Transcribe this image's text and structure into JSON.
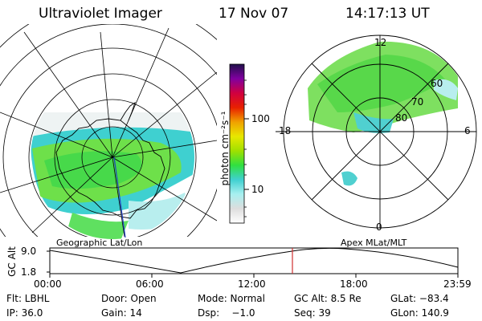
{
  "header": {
    "instrument": "Ultraviolet Imager",
    "date": "17 Nov 07",
    "time": "14:17:13 UT"
  },
  "left_panel": {
    "caption": "Geographic Lat/Lon"
  },
  "right_panel": {
    "caption": "Apex MLat/MLT",
    "mlt_labels": {
      "top": "12",
      "left": "18",
      "right": "6",
      "bottom": "0"
    },
    "lat_labels": [
      "60",
      "70",
      "80"
    ]
  },
  "colorbar": {
    "unit": "photon cm⁻²s⁻¹",
    "ticks": [
      "100",
      "10"
    ],
    "colors": [
      "#ffffff",
      "#dddddd",
      "#a8f0f0",
      "#40d0d0",
      "#30e040",
      "#a0e000",
      "#e8e800",
      "#f0a000",
      "#e82000",
      "#d00040",
      "#8000a0",
      "#20104a"
    ]
  },
  "altitude_plot": {
    "ylabel": "GC Alt",
    "y_ticks": [
      "9.0",
      "1.8"
    ],
    "x_ticks": [
      "00:00",
      "06:00",
      "12:00",
      "18:00",
      "23:59"
    ],
    "marker_color": "#d03030"
  },
  "status": {
    "row1": {
      "flt": "Flt: LBHL",
      "door": "Door: Open",
      "mode": "Mode: Normal",
      "gcalt": "GC Alt: 8.5 Re",
      "glat": "GLat: −83.4"
    },
    "row2": {
      "ip": "IP: 36.0",
      "gain": "Gain: 14",
      "dsp": "Dsp:    −1.0",
      "seq": "Seq: 39",
      "glon": "GLon: 140.9"
    }
  }
}
